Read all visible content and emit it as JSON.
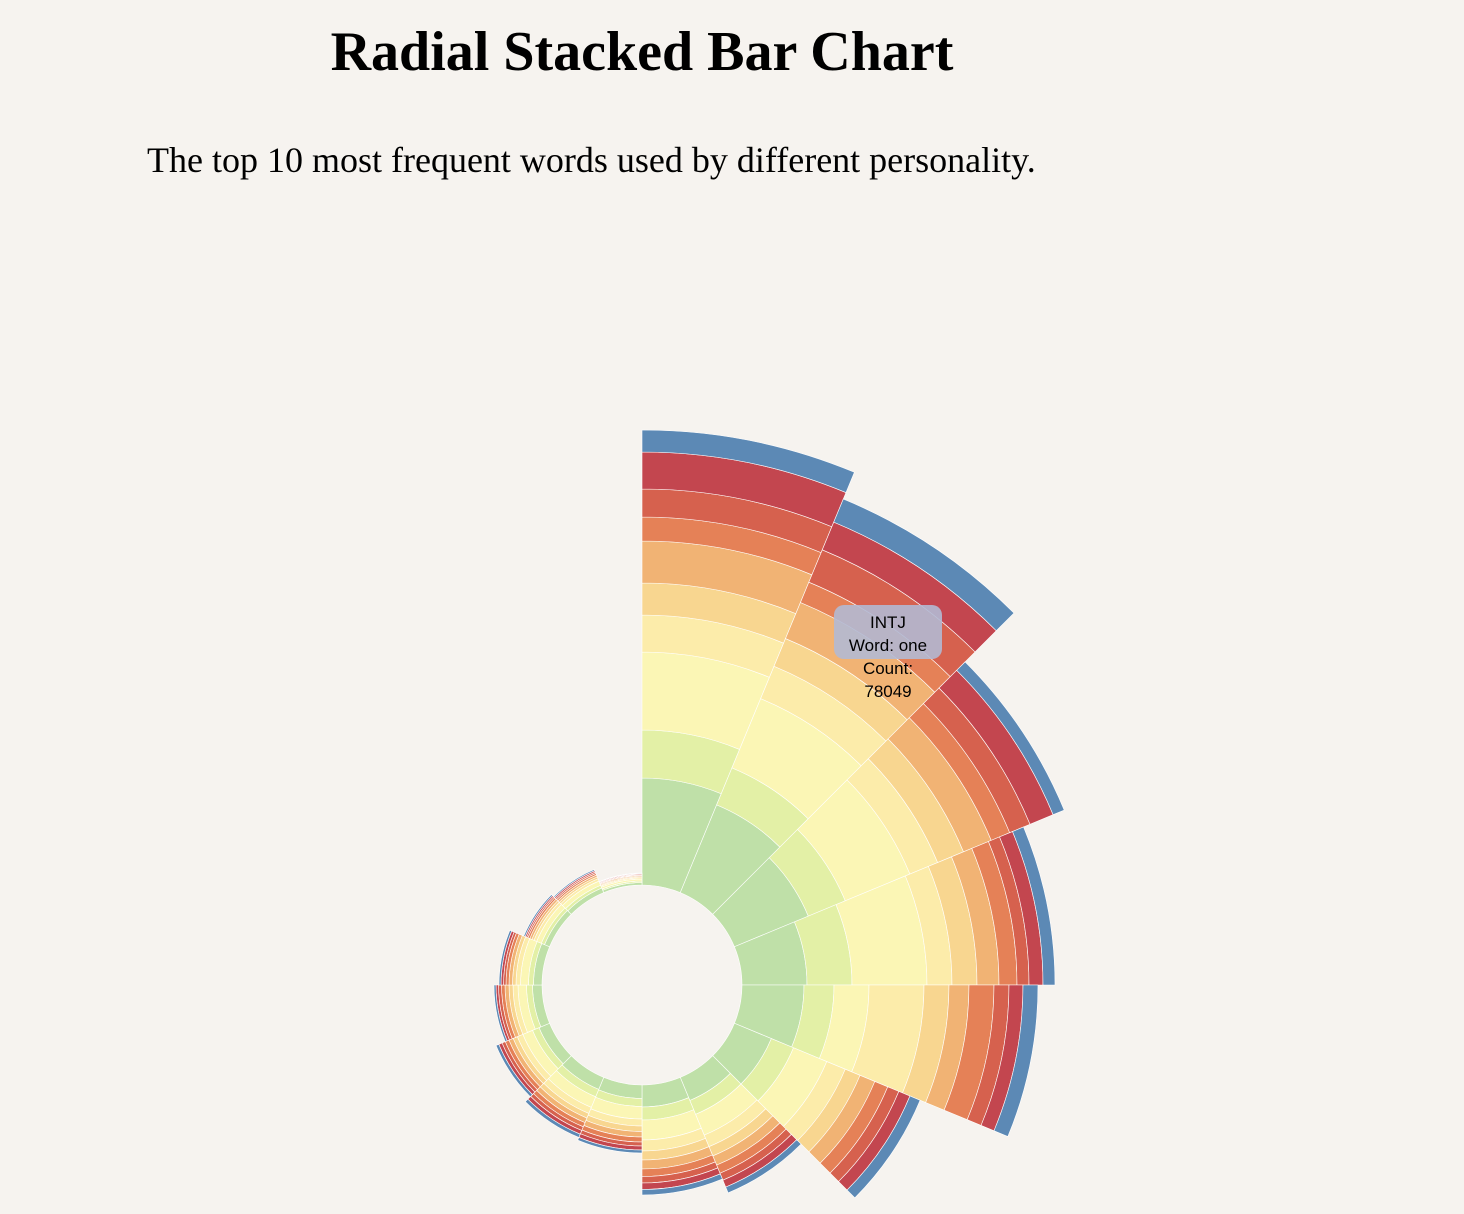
{
  "chart_data": {
    "type": "radial_stacked_bar",
    "title": "Radial Stacked Bar Chart",
    "subtitle": "The top 10 most frequent words used by different personality.",
    "categories": [
      null,
      null,
      null,
      null,
      null,
      null,
      null,
      null,
      null,
      null,
      null,
      null,
      null,
      null,
      null,
      null
    ],
    "ylim": [
      0,
      910000
    ],
    "series": [
      {
        "color": "#bfe0a8",
        "values": [
          214000,
          190000,
          160000,
          130000,
          124000,
          80000,
          50000,
          44000,
          27000,
          26000,
          23000,
          19000,
          17000,
          11000,
          10000,
          5000
        ]
      },
      {
        "color": "#e3f0a6",
        "values": [
          96000,
          80000,
          80000,
          90000,
          60000,
          48000,
          30000,
          26000,
          16000,
          16000,
          14000,
          12000,
          10000,
          7000,
          6000,
          3000
        ]
      },
      {
        "color": "#fbf6b5",
        "values": [
          156000,
          150000,
          140000,
          150000,
          70000,
          72000,
          45000,
          40000,
          25000,
          23000,
          21000,
          17000,
          16000,
          10000,
          9000,
          4000
        ]
      },
      {
        "color": "#fcecaa",
        "values": [
          74000,
          70000,
          60000,
          50000,
          110000,
          40000,
          25000,
          22000,
          14000,
          13000,
          12000,
          10000,
          9000,
          6000,
          5000,
          2500
        ]
      },
      {
        "color": "#f8d690",
        "values": [
          64000,
          60000,
          56000,
          50000,
          50000,
          32000,
          20000,
          18000,
          11000,
          10000,
          9000,
          8000,
          7000,
          4500,
          4000,
          2000
        ]
      },
      {
        "color": "#f1b374",
        "values": [
          84000,
          78049,
          60000,
          44000,
          40000,
          32000,
          20000,
          18000,
          11000,
          10000,
          9000,
          8000,
          7000,
          4500,
          4000,
          2000
        ]
      },
      {
        "color": "#e58157",
        "values": [
          48000,
          44000,
          40000,
          36000,
          50000,
          28000,
          17500,
          15000,
          10000,
          9000,
          8000,
          7000,
          6000,
          4000,
          3500,
          1500
        ]
      },
      {
        "color": "#d6614e",
        "values": [
          56000,
          70000,
          44000,
          24000,
          30000,
          24000,
          15000,
          13000,
          8000,
          8000,
          7000,
          6000,
          5000,
          3000,
          3000,
          1500
        ]
      },
      {
        "color": "#c3464f",
        "values": [
          74000,
          60000,
          50000,
          28000,
          28000,
          24000,
          15000,
          13000,
          8000,
          8000,
          7000,
          5000,
          5000,
          3000,
          3000,
          1500
        ]
      },
      {
        "color": "#5c89b5",
        "values": [
          44000,
          50000,
          24000,
          24000,
          30000,
          22000,
          12500,
          11000,
          6000,
          7000,
          6000,
          4000,
          4000,
          3000,
          2500,
          1000
        ]
      }
    ],
    "tooltip": {
      "category": "INTJ",
      "word_prefix": "Word:",
      "word": "one",
      "count_prefix": "Count:",
      "count": 78049
    }
  }
}
